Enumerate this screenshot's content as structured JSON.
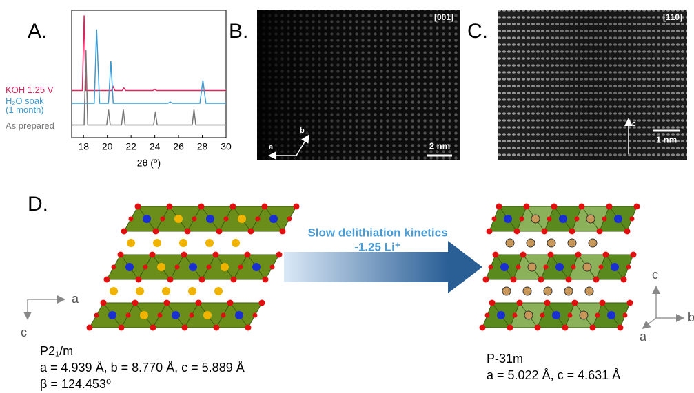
{
  "chart_data": {
    "type": "line",
    "x_label": "2θ (⁰)",
    "xlim": [
      17,
      30
    ],
    "xticks": [
      18,
      20,
      22,
      24,
      26,
      28,
      30
    ],
    "ylim": [
      0,
      100
    ],
    "series": [
      {
        "name": "KOH 1.25 V",
        "color": "#e0245e",
        "x": [
          17,
          17.9,
          18.05,
          18.2,
          20.35,
          20.5,
          20.65,
          21.25,
          21.4,
          21.55,
          23.85,
          24,
          24.15,
          30
        ],
        "values": [
          37,
          37,
          96,
          37,
          37,
          40,
          37,
          37,
          39,
          37,
          37,
          38,
          37,
          37
        ]
      },
      {
        "name": "H₂O soak\n(1 month)",
        "color": "#3d9bd1",
        "x": [
          17,
          18.9,
          19.1,
          19.35,
          20.1,
          20.3,
          20.5,
          25.1,
          25.3,
          25.5,
          27.8,
          28.05,
          28.3,
          30
        ],
        "values": [
          27,
          27,
          85,
          27,
          27,
          60,
          27,
          27,
          28,
          27,
          27,
          45,
          27,
          27
        ]
      },
      {
        "name": "As prepared",
        "color": "#777777",
        "x": [
          17,
          18.05,
          18.2,
          18.35,
          19.95,
          20.1,
          20.25,
          21.2,
          21.35,
          21.5,
          23.9,
          24.05,
          24.2,
          27.15,
          27.3,
          27.45,
          30
        ],
        "values": [
          10,
          10,
          69,
          10,
          10,
          22,
          10,
          10,
          22,
          10,
          10,
          20,
          10,
          10,
          22,
          10,
          10
        ]
      }
    ]
  },
  "panels": {
    "A": {
      "label": "A."
    },
    "B": {
      "label": "B.",
      "zone": "[001]",
      "scale": "2 nm",
      "axis_a": "a",
      "axis_b": "b"
    },
    "C": {
      "label": "C.",
      "zone": "[1̄10]",
      "scale": "1 nm",
      "axis_c": "c"
    },
    "D": {
      "label": "D.",
      "arrow_line1": "Slow delithiation kinetics",
      "arrow_line2": "-1.25 Li⁺",
      "left": {
        "group": "P2₁/m",
        "params": "a = 4.939 Å, b = 8.770 Å, c = 5.889 Å",
        "beta": "β = 124.453⁰",
        "axis_a": "a",
        "axis_c": "c"
      },
      "right": {
        "group": "P-31m",
        "params": "a = 5.022 Å, c = 4.631 Å",
        "axis_c": "c",
        "axis_b": "b",
        "axis_a": "a"
      }
    }
  }
}
